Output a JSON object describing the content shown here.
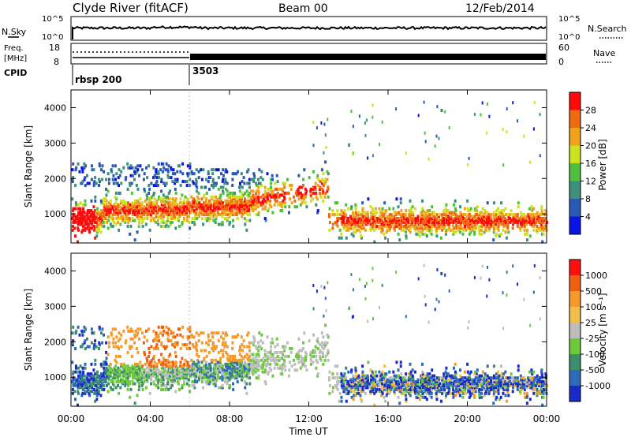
{
  "header": {
    "station": "Clyde River (fitACF)",
    "beam": "Beam 00",
    "date": "12/Feb/2014"
  },
  "top_panels": {
    "nsky_label": "N.Sky",
    "nsky_ticks": [
      "10^5",
      "10^0"
    ],
    "nsearch_label": "N.Search",
    "nsearch_ticks": [
      "10^5",
      "10^0"
    ],
    "freq_label_1": "Freq.",
    "freq_label_2": "[MHz]",
    "freq_ticks": [
      "18",
      "8"
    ],
    "nave_label": "Nave",
    "nave_ticks": [
      "60",
      "0"
    ],
    "cpid_label": "CPID",
    "cpid_segments": [
      {
        "label": "rbsp 200",
        "start_hour": 0
      },
      {
        "label": "3503",
        "start_hour": 6
      }
    ]
  },
  "chart_data": [
    {
      "type": "heatmap",
      "title": "",
      "xlabel": "",
      "ylabel": "Slant Range [km]",
      "x_unit": "hours UT",
      "xlim": [
        0,
        24
      ],
      "ylim": [
        180,
        4500
      ],
      "y_ticks": [
        "1000",
        "2000",
        "3000",
        "4000"
      ],
      "colorbar_label": "Power [dB]",
      "colorbar_ticks": [
        "4",
        "8",
        "12",
        "16",
        "20",
        "24",
        "28"
      ],
      "colors": [
        "#0a14e6",
        "#2a5ab4",
        "#3f8f7d",
        "#4fbf3f",
        "#cde21f",
        "#f0a21a",
        "#ee6a10",
        "#ff0a0a"
      ]
    },
    {
      "type": "heatmap",
      "title": "",
      "xlabel": "Time UT",
      "ylabel": "Slant Range [km]",
      "x_unit": "hours UT",
      "xlim": [
        0,
        24
      ],
      "ylim": [
        180,
        4500
      ],
      "x_ticks": [
        "00:00",
        "04:00",
        "08:00",
        "12:00",
        "16:00",
        "20:00",
        "00:00"
      ],
      "y_ticks": [
        "1000",
        "2000",
        "3000",
        "4000"
      ],
      "colorbar_label": "Velocity [m s⁻¹]",
      "colorbar_ticks": [
        "1000",
        "500",
        "100",
        "25",
        "-25",
        "-100",
        "-500",
        "-1000"
      ],
      "colors": [
        "#1a2ac8",
        "#2e6ab8",
        "#3c8f6c",
        "#6cc93a",
        "#bdbdbd",
        "#f0c04a",
        "#f59a2a",
        "#ee6010",
        "#ff1010"
      ]
    }
  ]
}
